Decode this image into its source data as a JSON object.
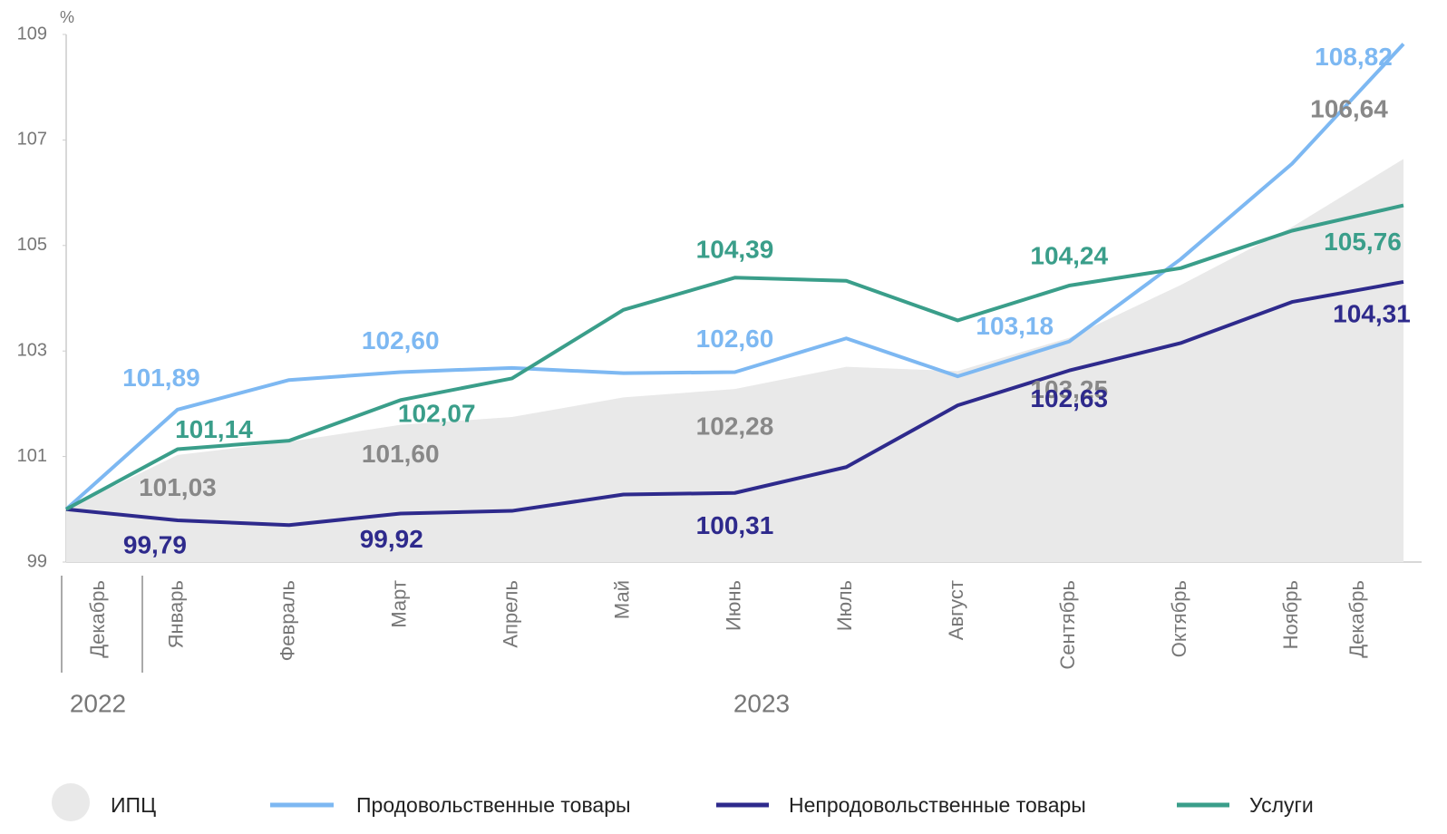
{
  "chart_data": {
    "type": "line",
    "y_unit": "%",
    "categories": [
      "Декабрь",
      "Январь",
      "Февраль",
      "Март",
      "Апрель",
      "Май",
      "Июнь",
      "Июль",
      "Август",
      "Сентябрь",
      "Октябрь",
      "Ноябрь",
      "Декабрь"
    ],
    "year_labels": [
      "2022",
      "2023"
    ],
    "ylim": [
      99,
      109
    ],
    "yticks": [
      99,
      101,
      103,
      105,
      107,
      109
    ],
    "series": [
      {
        "name": "ИПЦ",
        "style": "area",
        "color": "#e9e9e9",
        "label_color": "#888888",
        "values": [
          100,
          101.03,
          101.28,
          101.6,
          101.75,
          102.12,
          102.28,
          102.7,
          102.62,
          103.25,
          104.25,
          105.35,
          106.64
        ],
        "value_labels": [
          null,
          "101,03",
          null,
          "101,60",
          null,
          null,
          "102,28",
          null,
          null,
          "103,25",
          null,
          null,
          "106,64"
        ]
      },
      {
        "name": "Продовольственные товары",
        "style": "line",
        "color": "#7db8f2",
        "label_color": "#7db8f2",
        "values": [
          100,
          101.89,
          102.45,
          102.6,
          102.68,
          102.58,
          102.6,
          103.24,
          102.52,
          103.18,
          104.74,
          106.55,
          108.82
        ],
        "value_labels": [
          null,
          "101,89",
          null,
          "102,60",
          null,
          null,
          "102,60",
          null,
          null,
          "103,18",
          null,
          null,
          "108,82"
        ]
      },
      {
        "name": "Непродовольственные товары",
        "style": "line",
        "color": "#2e2a8c",
        "label_color": "#2e2a8c",
        "values": [
          100,
          99.79,
          99.7,
          99.92,
          99.97,
          100.28,
          100.31,
          100.8,
          101.97,
          102.63,
          103.15,
          103.93,
          104.31
        ],
        "value_labels": [
          null,
          "99,79",
          null,
          "99,92",
          null,
          null,
          "100,31",
          null,
          null,
          "102,63",
          null,
          null,
          "104,31"
        ]
      },
      {
        "name": "Услуги",
        "style": "line",
        "color": "#3a9e8a",
        "label_color": "#3a9e8a",
        "values": [
          100,
          101.14,
          101.3,
          102.07,
          102.48,
          103.78,
          104.39,
          104.33,
          103.58,
          104.24,
          104.57,
          105.28,
          105.76
        ],
        "value_labels": [
          null,
          "101,14",
          null,
          "102,07",
          null,
          null,
          "104,39",
          null,
          null,
          "104,24",
          null,
          null,
          "105,76"
        ]
      }
    ]
  }
}
